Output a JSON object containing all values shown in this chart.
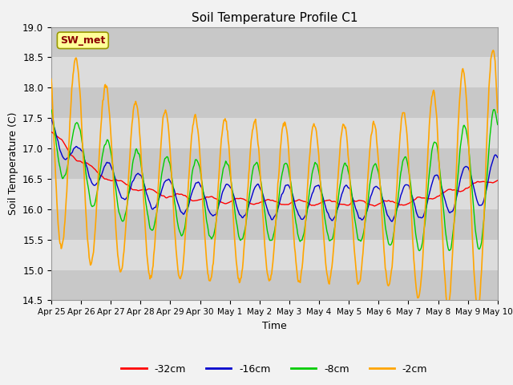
{
  "title": "Soil Temperature Profile C1",
  "xlabel": "Time",
  "ylabel": "Soil Temperature (C)",
  "ylim": [
    14.5,
    19.0
  ],
  "yticks": [
    14.5,
    15.0,
    15.5,
    16.0,
    16.5,
    17.0,
    17.5,
    18.0,
    18.5,
    19.0
  ],
  "xtick_labels": [
    "Apr 25",
    "Apr 26",
    "Apr 27",
    "Apr 28",
    "Apr 29",
    "Apr 30",
    "May 1",
    "May 2",
    "May 3",
    "May 4",
    "May 5",
    "May 6",
    "May 7",
    "May 8",
    "May 9",
    "May 10"
  ],
  "annotation_text": "SW_met",
  "annotation_color": "#8B0000",
  "annotation_bg": "#FFFF99",
  "legend_labels": [
    "-32cm",
    "-16cm",
    "-8cm",
    "-2cm"
  ],
  "legend_colors": [
    "#FF0000",
    "#0000CD",
    "#00CC00",
    "#FFA500"
  ],
  "line_colors": [
    "#FF0000",
    "#0000CD",
    "#00CC00",
    "#FFA500"
  ],
  "fig_bg": "#F2F2F2",
  "plot_bg": "#DCDCDC",
  "band_color": "#C8C8C8"
}
